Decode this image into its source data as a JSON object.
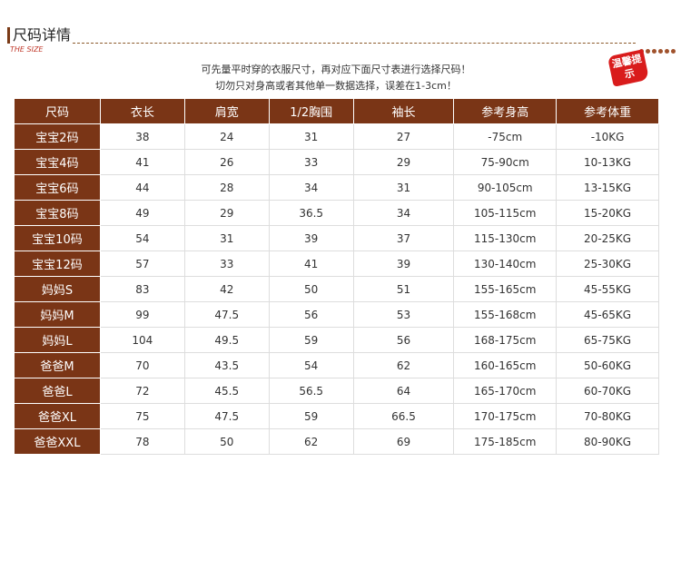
{
  "header": {
    "title": "尺码详情",
    "subtitle": "THE SIZE"
  },
  "notes": [
    "可先量平时穿的衣服尺寸，再对应下面尺寸表进行选择尺码！",
    "切勿只对身高或者其他单一数据选择，误差在1-3cm！"
  ],
  "badge": "温馨提示",
  "table": {
    "columns": [
      "尺码",
      "衣长",
      "肩宽",
      "1/2胸围",
      "袖长",
      "参考身高",
      "参考体重"
    ],
    "rows": [
      [
        "宝宝2码",
        "38",
        "24",
        "31",
        "27",
        "-75cm",
        "-10KG"
      ],
      [
        "宝宝4码",
        "41",
        "26",
        "33",
        "29",
        "75-90cm",
        "10-13KG"
      ],
      [
        "宝宝6码",
        "44",
        "28",
        "34",
        "31",
        "90-105cm",
        "13-15KG"
      ],
      [
        "宝宝8码",
        "49",
        "29",
        "36.5",
        "34",
        "105-115cm",
        "15-20KG"
      ],
      [
        "宝宝10码",
        "54",
        "31",
        "39",
        "37",
        "115-130cm",
        "20-25KG"
      ],
      [
        "宝宝12码",
        "57",
        "33",
        "41",
        "39",
        "130-140cm",
        "25-30KG"
      ],
      [
        "妈妈S",
        "83",
        "42",
        "50",
        "51",
        "155-165cm",
        "45-55KG"
      ],
      [
        "妈妈M",
        "99",
        "47.5",
        "56",
        "53",
        "155-168cm",
        "45-65KG"
      ],
      [
        "妈妈L",
        "104",
        "49.5",
        "59",
        "56",
        "168-175cm",
        "65-75KG"
      ],
      [
        "爸爸M",
        "70",
        "43.5",
        "54",
        "62",
        "160-165cm",
        "50-60KG"
      ],
      [
        "爸爸L",
        "72",
        "45.5",
        "56.5",
        "64",
        "165-170cm",
        "60-70KG"
      ],
      [
        "爸爸XL",
        "75",
        "47.5",
        "59",
        "66.5",
        "170-175cm",
        "70-80KG"
      ],
      [
        "爸爸XXL",
        "78",
        "50",
        "62",
        "69",
        "175-185cm",
        "80-90KG"
      ]
    ]
  }
}
